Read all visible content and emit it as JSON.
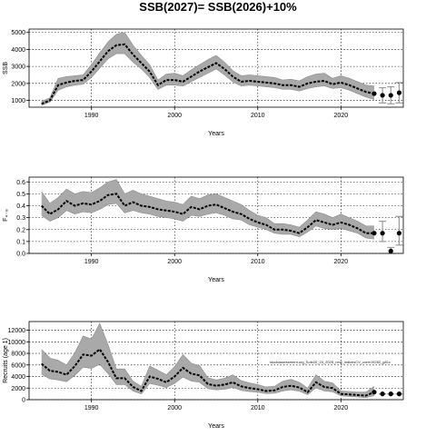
{
  "title": "SSB(2027)= SSB(2026)+10%",
  "annotation": "stockassessment.org_Sole20_24_2025_new_indicesCV_contr19282_g81c",
  "chart_data": [
    {
      "type": "line",
      "name": "ssb",
      "xlabel": "Years",
      "ylabel": "SSB",
      "xlim": [
        1982.5,
        2027.5
      ],
      "ylim": [
        600,
        5200
      ],
      "xticks": [
        1990,
        2000,
        2010,
        2020
      ],
      "yticks": [
        1000,
        2000,
        3000,
        4000,
        5000
      ],
      "grid": true,
      "x": [
        1984,
        1985,
        1986,
        1987,
        1988,
        1989,
        1990,
        1991,
        1992,
        1993,
        1994,
        1995,
        1996,
        1997,
        1998,
        1999,
        2000,
        2001,
        2002,
        2003,
        2004,
        2005,
        2006,
        2007,
        2008,
        2009,
        2010,
        2011,
        2012,
        2013,
        2014,
        2015,
        2016,
        2017,
        2018,
        2019,
        2020,
        2021,
        2022,
        2023,
        2024
      ],
      "y": [
        800,
        1000,
        1900,
        2050,
        2150,
        2200,
        2700,
        3300,
        3900,
        4250,
        4300,
        3700,
        3200,
        2700,
        1900,
        2200,
        2200,
        2100,
        2400,
        2700,
        2950,
        3200,
        2850,
        2400,
        2100,
        2150,
        2100,
        2050,
        2000,
        1900,
        1900,
        1800,
        2000,
        2100,
        2150,
        1950,
        2050,
        1900,
        1700,
        1500,
        1400
      ],
      "lower": [
        700,
        900,
        1600,
        1800,
        1900,
        1950,
        2350,
        2900,
        3450,
        3750,
        3750,
        3250,
        2850,
        2350,
        1650,
        1900,
        1900,
        1850,
        2100,
        2350,
        2600,
        2850,
        2500,
        2100,
        1850,
        1900,
        1850,
        1800,
        1750,
        1650,
        1650,
        1550,
        1700,
        1800,
        1850,
        1700,
        1750,
        1600,
        1400,
        1200,
        1050
      ],
      "upper": [
        950,
        1150,
        2300,
        2400,
        2450,
        2500,
        3100,
        3800,
        4450,
        4900,
        5000,
        4250,
        3650,
        3100,
        2200,
        2550,
        2600,
        2450,
        2800,
        3100,
        3400,
        3650,
        3250,
        2750,
        2450,
        2500,
        2450,
        2400,
        2350,
        2200,
        2250,
        2150,
        2400,
        2550,
        2600,
        2300,
        2450,
        2300,
        2100,
        1900,
        1850
      ],
      "forecast": {
        "x": [
          2025,
          2026,
          2027
        ],
        "y": [
          1300,
          1300,
          1450
        ],
        "lower": [
          850,
          800,
          850
        ],
        "upper": [
          1750,
          1800,
          2050
        ]
      }
    },
    {
      "type": "line",
      "name": "fbar",
      "xlabel": "Years",
      "ylabel": "F₄₋₈",
      "xlim": [
        1982.5,
        2027.5
      ],
      "ylim": [
        0,
        0.64
      ],
      "xticks": [
        1990,
        2000,
        2010,
        2020
      ],
      "yticks": [
        0.0,
        0.1,
        0.2,
        0.3,
        0.4,
        0.5,
        0.6
      ],
      "ytick_labels": [
        "0.0",
        "0.1",
        "0.2",
        "0.3",
        "0.4",
        "0.5",
        "0.6"
      ],
      "grid": true,
      "x": [
        1984,
        1985,
        1986,
        1987,
        1988,
        1989,
        1990,
        1991,
        1992,
        1993,
        1994,
        1995,
        1996,
        1997,
        1998,
        1999,
        2000,
        2001,
        2002,
        2003,
        2004,
        2005,
        2006,
        2007,
        2008,
        2009,
        2010,
        2011,
        2012,
        2013,
        2014,
        2015,
        2016,
        2017,
        2018,
        2019,
        2020,
        2021,
        2022,
        2023,
        2024
      ],
      "y": [
        0.4,
        0.33,
        0.37,
        0.44,
        0.4,
        0.42,
        0.41,
        0.44,
        0.49,
        0.5,
        0.4,
        0.43,
        0.4,
        0.39,
        0.37,
        0.36,
        0.35,
        0.33,
        0.39,
        0.37,
        0.4,
        0.41,
        0.38,
        0.35,
        0.33,
        0.29,
        0.26,
        0.24,
        0.2,
        0.2,
        0.19,
        0.17,
        0.22,
        0.28,
        0.26,
        0.24,
        0.26,
        0.24,
        0.21,
        0.17,
        0.17
      ],
      "lower": [
        0.32,
        0.27,
        0.3,
        0.36,
        0.33,
        0.35,
        0.34,
        0.37,
        0.41,
        0.42,
        0.34,
        0.36,
        0.34,
        0.33,
        0.31,
        0.3,
        0.29,
        0.27,
        0.32,
        0.31,
        0.33,
        0.34,
        0.32,
        0.29,
        0.28,
        0.24,
        0.22,
        0.2,
        0.17,
        0.16,
        0.16,
        0.14,
        0.18,
        0.23,
        0.21,
        0.2,
        0.21,
        0.19,
        0.17,
        0.13,
        0.12
      ],
      "upper": [
        0.52,
        0.42,
        0.47,
        0.54,
        0.5,
        0.52,
        0.51,
        0.55,
        0.6,
        0.62,
        0.5,
        0.53,
        0.5,
        0.48,
        0.46,
        0.44,
        0.43,
        0.41,
        0.48,
        0.46,
        0.49,
        0.5,
        0.47,
        0.44,
        0.41,
        0.36,
        0.32,
        0.3,
        0.25,
        0.25,
        0.24,
        0.22,
        0.28,
        0.35,
        0.33,
        0.3,
        0.33,
        0.3,
        0.27,
        0.23,
        0.23
      ],
      "forecast": {
        "x": [
          2025,
          2026,
          2027
        ],
        "y": [
          0.17,
          0.02,
          0.17
        ],
        "lower": [
          0.1,
          0.0,
          0.07
        ],
        "upper": [
          0.27,
          0.05,
          0.31
        ]
      }
    },
    {
      "type": "line",
      "name": "recruitment",
      "xlabel": "Years",
      "ylabel": "Recruits (age 1)",
      "xlim": [
        1982.5,
        2027.5
      ],
      "ylim": [
        0,
        13500
      ],
      "xticks": [
        1990,
        2000,
        2010,
        2020
      ],
      "yticks": [
        0,
        2000,
        4000,
        6000,
        8000,
        10000,
        12000
      ],
      "grid": true,
      "x": [
        1984,
        1985,
        1986,
        1987,
        1988,
        1989,
        1990,
        1991,
        1992,
        1993,
        1994,
        1995,
        1996,
        1997,
        1998,
        1999,
        2000,
        2001,
        2002,
        2003,
        2004,
        2005,
        2006,
        2007,
        2008,
        2009,
        2010,
        2011,
        2012,
        2013,
        2014,
        2015,
        2016,
        2017,
        2018,
        2019,
        2020,
        2021,
        2022,
        2023,
        2024
      ],
      "y": [
        6200,
        5000,
        4800,
        4300,
        5800,
        7800,
        7600,
        8700,
        6500,
        3700,
        3700,
        2200,
        1500,
        4000,
        3600,
        3000,
        4000,
        5500,
        4500,
        4200,
        2700,
        2400,
        2600,
        3000,
        2300,
        2000,
        1800,
        1500,
        1600,
        2200,
        2400,
        2100,
        1300,
        3000,
        2200,
        2000,
        1000,
        900,
        800,
        700,
        1300
      ],
      "lower": [
        4400,
        3600,
        3400,
        3100,
        4200,
        5600,
        5400,
        6100,
        4500,
        2600,
        2600,
        1500,
        1000,
        2800,
        2500,
        2100,
        2800,
        3900,
        3200,
        3000,
        1900,
        1700,
        1800,
        2100,
        1600,
        1400,
        1300,
        1050,
        1100,
        1500,
        1700,
        1450,
        850,
        2050,
        1500,
        1350,
        650,
        550,
        450,
        350,
        700
      ],
      "upper": [
        8700,
        7200,
        6800,
        6000,
        8100,
        11000,
        10500,
        13200,
        9500,
        5300,
        5300,
        3200,
        2300,
        5800,
        5100,
        4300,
        5700,
        7800,
        6300,
        5900,
        3800,
        3400,
        3700,
        4300,
        3300,
        2900,
        2600,
        2200,
        2300,
        3200,
        3500,
        3000,
        2000,
        4300,
        3200,
        2900,
        1500,
        1400,
        1300,
        1300,
        2300
      ],
      "forecast": {
        "x": [
          2025,
          2026,
          2027
        ],
        "y": [
          1000,
          1000,
          1000
        ],
        "lower": [
          1000,
          1000,
          1000
        ],
        "upper": [
          1000,
          1000,
          1000
        ]
      }
    }
  ]
}
